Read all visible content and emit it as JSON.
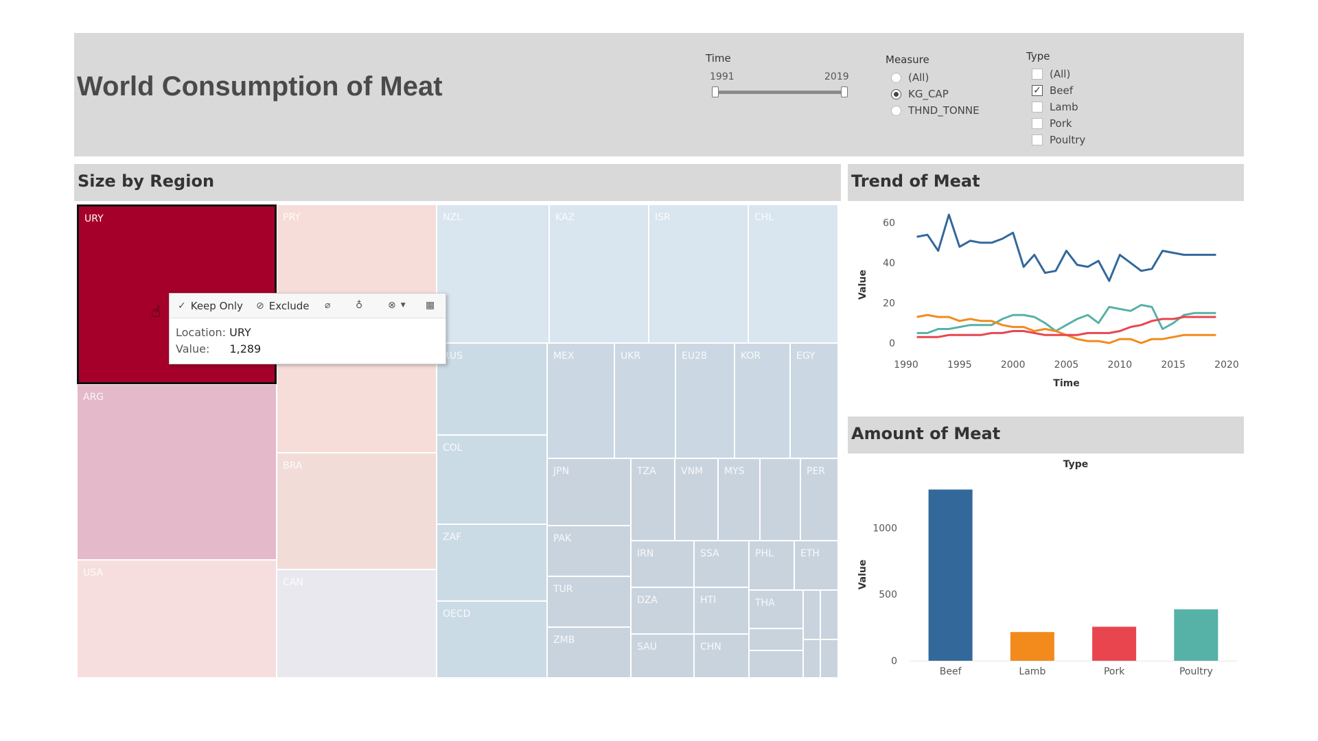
{
  "header": {
    "title": "World Consumption of Meat"
  },
  "filters": {
    "time": {
      "label": "Time",
      "min": "1991",
      "max": "2019"
    },
    "measure": {
      "label": "Measure",
      "options": [
        {
          "label": "(All)",
          "selected": false
        },
        {
          "label": "KG_CAP",
          "selected": true
        },
        {
          "label": "THND_TONNE",
          "selected": false
        }
      ]
    },
    "type": {
      "label": "Type",
      "options": [
        {
          "label": "(All)",
          "checked": false
        },
        {
          "label": "Beef",
          "checked": true
        },
        {
          "label": "Lamb",
          "checked": false
        },
        {
          "label": "Pork",
          "checked": false
        },
        {
          "label": "Poultry",
          "checked": false
        }
      ]
    }
  },
  "panels": {
    "region": {
      "title": "Size by Region"
    },
    "trend": {
      "title": "Trend of Meat"
    },
    "amount": {
      "title": "Amount of Meat"
    }
  },
  "treemap_labels": [
    "URY",
    "PRY",
    "NZL",
    "KAZ",
    "ISR",
    "CHL",
    "ARG",
    "RUS",
    "MEX",
    "UKR",
    "EU28",
    "KOR",
    "EGY",
    "BRA",
    "COL",
    "JPN",
    "TZA",
    "VNM",
    "MYS",
    "PER",
    "USA",
    "CAN",
    "ZAF",
    "PAK",
    "IRN",
    "SSA",
    "PHL",
    "ETH",
    "OECD",
    "TUR",
    "DZA",
    "HTI",
    "THA",
    "ZMB",
    "SAU",
    "CHN"
  ],
  "tooltip": {
    "keep_only": "Keep Only",
    "exclude": "Exclude",
    "location_label": "Location:",
    "location_value": "URY",
    "value_label": "Value:",
    "value_value": "1,289"
  },
  "colors": {
    "beef": "#33689b",
    "lamb": "#f28a1c",
    "pork": "#e8454f",
    "poultry": "#56b1a7",
    "selected": "#a4002a"
  },
  "chart_data": [
    {
      "type": "line",
      "title": "Trend of Meat",
      "xlabel": "Time",
      "ylabel": "Value",
      "xlim": [
        1990,
        2020
      ],
      "ylim": [
        0,
        65
      ],
      "x_ticks": [
        1990,
        1995,
        2000,
        2005,
        2010,
        2015,
        2020
      ],
      "y_ticks": [
        0,
        20,
        40,
        60
      ],
      "x": [
        1991,
        1992,
        1993,
        1994,
        1995,
        1996,
        1997,
        1998,
        1999,
        2000,
        2001,
        2002,
        2003,
        2004,
        2005,
        2006,
        2007,
        2008,
        2009,
        2010,
        2011,
        2012,
        2013,
        2014,
        2015,
        2016,
        2017,
        2018,
        2019
      ],
      "series": [
        {
          "name": "Beef",
          "color": "#33689b",
          "values": [
            53,
            54,
            46,
            64,
            48,
            51,
            50,
            50,
            52,
            55,
            38,
            44,
            35,
            36,
            46,
            39,
            38,
            41,
            31,
            44,
            40,
            36,
            37,
            46,
            45,
            44,
            44,
            44,
            44
          ]
        },
        {
          "name": "Poultry",
          "color": "#56b1a7",
          "values": [
            5,
            5,
            7,
            7,
            8,
            9,
            9,
            9,
            12,
            14,
            14,
            13,
            10,
            6,
            9,
            12,
            14,
            10,
            18,
            17,
            16,
            19,
            18,
            7,
            10,
            14,
            15,
            15,
            15
          ]
        },
        {
          "name": "Lamb",
          "color": "#f28a1c",
          "values": [
            13,
            14,
            13,
            13,
            11,
            12,
            11,
            11,
            9,
            8,
            8,
            6,
            7,
            6,
            4,
            2,
            1,
            1,
            0,
            2,
            2,
            0,
            2,
            2,
            3,
            4,
            4,
            4,
            4
          ]
        },
        {
          "name": "Pork",
          "color": "#e8454f",
          "values": [
            3,
            3,
            3,
            4,
            4,
            4,
            4,
            5,
            5,
            6,
            6,
            5,
            4,
            4,
            4,
            4,
            5,
            5,
            5,
            6,
            8,
            9,
            11,
            12,
            12,
            13,
            13,
            13,
            13
          ]
        }
      ]
    },
    {
      "type": "bar",
      "title": "Amount of Meat",
      "xlabel": "Type",
      "ylabel": "Value",
      "categories": [
        "Beef",
        "Lamb",
        "Pork",
        "Poultry"
      ],
      "values": [
        1289,
        216,
        256,
        387
      ],
      "colors": [
        "#33689b",
        "#f28a1c",
        "#e8454f",
        "#56b1a7"
      ],
      "ylim": [
        0,
        1400
      ],
      "y_ticks": [
        0,
        500,
        1000
      ]
    }
  ]
}
